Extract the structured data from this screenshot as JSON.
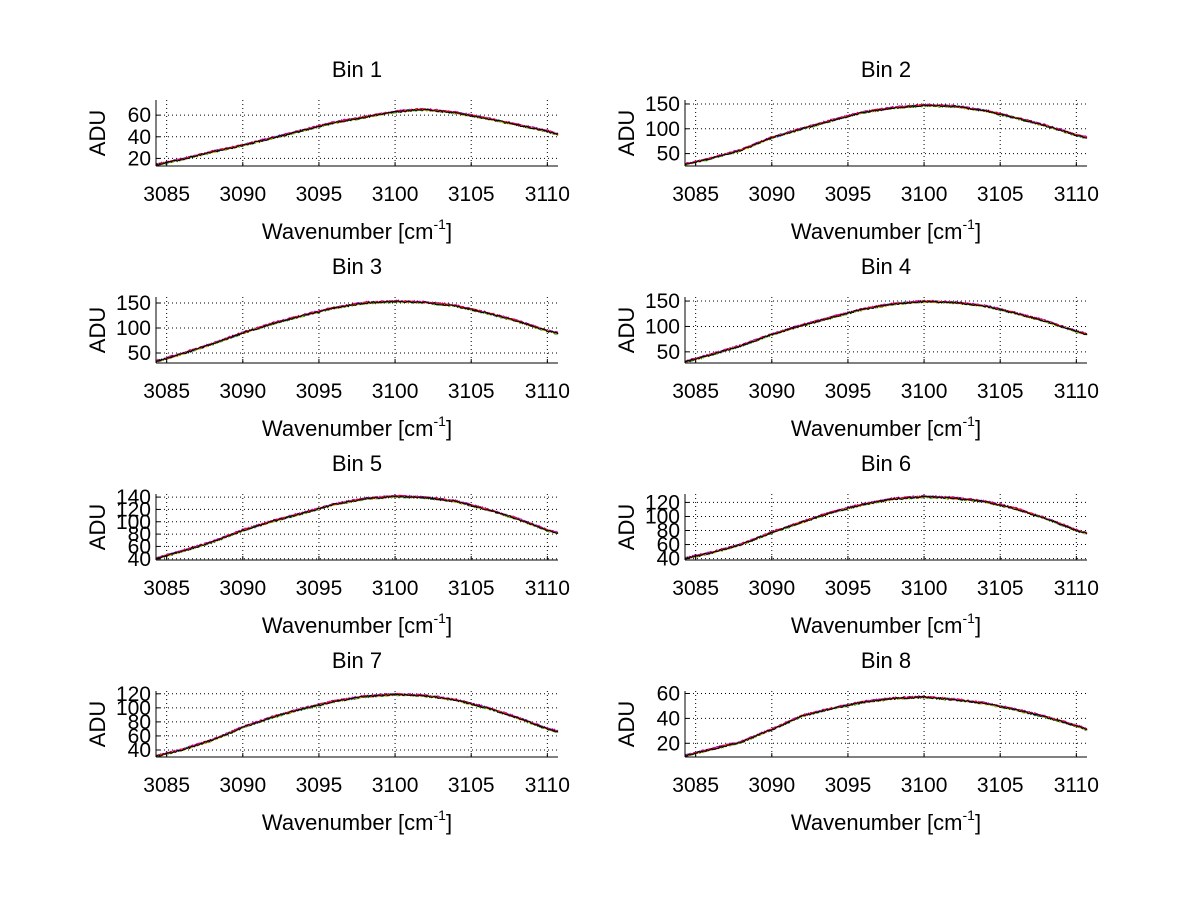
{
  "chart_data": [
    {
      "type": "line",
      "title": "Bin 1",
      "xlabel": "Wavenumber [cm",
      "xlabel_superscript": "-1",
      "xlabel_close": "]",
      "ylabel": "ADU",
      "xlim": [
        3084.3,
        3110.7
      ],
      "ylim": [
        13,
        74
      ],
      "xticks": [
        3085,
        3090,
        3095,
        3100,
        3105,
        3110
      ],
      "yticks": [
        20,
        40,
        60
      ],
      "grid": true,
      "x": [
        3084.3,
        3086,
        3088,
        3090,
        3092,
        3094,
        3096,
        3098,
        3100,
        3101.5,
        3102,
        3104,
        3106,
        3108,
        3110,
        3110.7
      ],
      "y": [
        14,
        19,
        26,
        32,
        39,
        46,
        53,
        58,
        63,
        65,
        65,
        62,
        57,
        51,
        45,
        42
      ]
    },
    {
      "type": "line",
      "title": "Bin 2",
      "xlabel": "Wavenumber [cm",
      "xlabel_superscript": "-1",
      "xlabel_close": "]",
      "ylabel": "ADU",
      "xlim": [
        3084.3,
        3110.7
      ],
      "ylim": [
        25,
        158
      ],
      "xticks": [
        3085,
        3090,
        3095,
        3100,
        3105,
        3110
      ],
      "yticks": [
        50,
        100,
        150
      ],
      "grid": true,
      "x": [
        3084.3,
        3086,
        3088,
        3090,
        3092,
        3094,
        3096,
        3098,
        3100,
        3102,
        3104,
        3106,
        3108,
        3110,
        3110.7
      ],
      "y": [
        28,
        40,
        57,
        82,
        100,
        117,
        133,
        142,
        147,
        145,
        136,
        122,
        106,
        87,
        82
      ]
    },
    {
      "type": "line",
      "title": "Bin 3",
      "xlabel": "Wavenumber [cm",
      "xlabel_superscript": "-1",
      "xlabel_close": "]",
      "ylabel": "ADU",
      "xlim": [
        3084.3,
        3110.7
      ],
      "ylim": [
        30,
        162
      ],
      "xticks": [
        3085,
        3090,
        3095,
        3100,
        3105,
        3110
      ],
      "yticks": [
        50,
        100,
        150
      ],
      "grid": true,
      "x": [
        3084.3,
        3086,
        3088,
        3090,
        3092,
        3094,
        3096,
        3098,
        3100,
        3102,
        3104,
        3106,
        3108,
        3110,
        3110.7
      ],
      "y": [
        33,
        48,
        68,
        90,
        109,
        125,
        140,
        150,
        153,
        151,
        144,
        130,
        114,
        94,
        89
      ]
    },
    {
      "type": "line",
      "title": "Bin 4",
      "xlabel": "Wavenumber [cm",
      "xlabel_superscript": "-1",
      "xlabel_close": "]",
      "ylabel": "ADU",
      "xlim": [
        3084.3,
        3110.7
      ],
      "ylim": [
        28,
        158
      ],
      "xticks": [
        3085,
        3090,
        3095,
        3100,
        3105,
        3110
      ],
      "yticks": [
        50,
        100,
        150
      ],
      "grid": true,
      "x": [
        3084.3,
        3086,
        3088,
        3090,
        3092,
        3094,
        3096,
        3098,
        3100,
        3102,
        3104,
        3106,
        3108,
        3110,
        3110.7
      ],
      "y": [
        30,
        44,
        62,
        84,
        102,
        118,
        134,
        144,
        149,
        147,
        140,
        126,
        110,
        90,
        84
      ]
    },
    {
      "type": "line",
      "title": "Bin 5",
      "xlabel": "Wavenumber [cm",
      "xlabel_superscript": "-1",
      "xlabel_close": "]",
      "ylabel": "ADU",
      "xlim": [
        3084.3,
        3110.7
      ],
      "ylim": [
        38,
        145
      ],
      "xticks": [
        3085,
        3090,
        3095,
        3100,
        3105,
        3110
      ],
      "yticks": [
        40,
        60,
        80,
        100,
        120,
        140
      ],
      "grid": true,
      "x": [
        3084.3,
        3086,
        3088,
        3090,
        3092,
        3094,
        3096,
        3098,
        3100,
        3102,
        3104,
        3106,
        3108,
        3110,
        3110.7
      ],
      "y": [
        40,
        52,
        67,
        86,
        101,
        114,
        128,
        137,
        141,
        139,
        133,
        120,
        105,
        86,
        81
      ]
    },
    {
      "type": "line",
      "title": "Bin 6",
      "xlabel": "Wavenumber [cm",
      "xlabel_superscript": "-1",
      "xlabel_close": "]",
      "ylabel": "ADU",
      "xlim": [
        3084.3,
        3110.7
      ],
      "ylim": [
        38,
        132
      ],
      "xticks": [
        3085,
        3090,
        3095,
        3100,
        3105,
        3110
      ],
      "yticks": [
        40,
        60,
        80,
        100,
        120
      ],
      "grid": true,
      "x": [
        3084.3,
        3086,
        3088,
        3090,
        3092,
        3094,
        3096,
        3098,
        3100,
        3102,
        3104,
        3106,
        3108,
        3110,
        3110.7
      ],
      "y": [
        40,
        48,
        60,
        77,
        92,
        106,
        117,
        125,
        128,
        126,
        121,
        111,
        97,
        80,
        76
      ]
    },
    {
      "type": "line",
      "title": "Bin 7",
      "xlabel": "Wavenumber [cm",
      "xlabel_superscript": "-1",
      "xlabel_close": "]",
      "ylabel": "ADU",
      "xlim": [
        3084.3,
        3110.7
      ],
      "ylim": [
        30,
        124
      ],
      "xticks": [
        3085,
        3090,
        3095,
        3100,
        3105,
        3110
      ],
      "yticks": [
        40,
        60,
        80,
        100,
        120
      ],
      "grid": true,
      "x": [
        3084.3,
        3086,
        3088,
        3090,
        3092,
        3094,
        3096,
        3098,
        3100,
        3102,
        3104,
        3106,
        3108,
        3110,
        3110.7
      ],
      "y": [
        31,
        40,
        54,
        72,
        87,
        99,
        109,
        116,
        119,
        117,
        111,
        100,
        86,
        70,
        66
      ]
    },
    {
      "type": "line",
      "title": "Bin 8",
      "xlabel": "Wavenumber [cm",
      "xlabel_superscript": "-1",
      "xlabel_close": "]",
      "ylabel": "ADU",
      "xlim": [
        3084.3,
        3110.7
      ],
      "ylim": [
        9,
        62
      ],
      "xticks": [
        3085,
        3090,
        3095,
        3100,
        3105,
        3110
      ],
      "yticks": [
        20,
        40,
        60
      ],
      "grid": true,
      "x": [
        3084.3,
        3086,
        3088,
        3090,
        3092,
        3094,
        3096,
        3098,
        3100,
        3102,
        3104,
        3106,
        3108,
        3110,
        3110.7
      ],
      "y": [
        10,
        15,
        21,
        31,
        42,
        48,
        53,
        56,
        57,
        55,
        52,
        47,
        41,
        34,
        31
      ]
    }
  ],
  "series_colors": [
    "#0000ff",
    "#00a000",
    "#ff0000",
    "#00c0c0",
    "#c000c0",
    "#c0c000",
    "#000000",
    "#ff8000"
  ]
}
